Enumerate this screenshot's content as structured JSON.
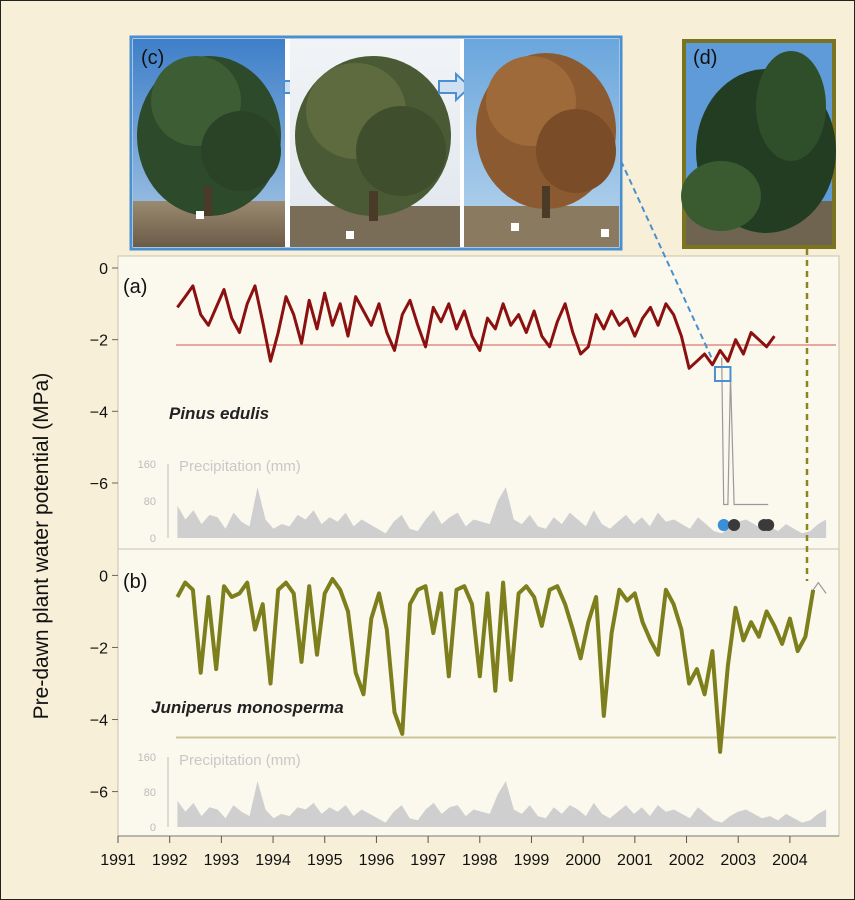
{
  "chart_data": {
    "type": "line",
    "ylabel": "Pre-dawn plant water potential (MPa)",
    "xlabel": "",
    "x_ticks": [
      "1991",
      "1992",
      "1993",
      "1994",
      "1995",
      "1996",
      "1997",
      "1998",
      "1999",
      "2000",
      "2001",
      "2002",
      "2003",
      "2004"
    ],
    "xlim": [
      1991.0,
      2004.95
    ],
    "photos": [
      {
        "label": "(c)",
        "panels": 3
      },
      {
        "label": "(d)",
        "panels": 1
      }
    ],
    "panels": [
      {
        "label": "(a)",
        "species": "Pinus edulis",
        "ylim": [
          -7.2,
          0
        ],
        "y_ticks": [
          "0",
          "−2",
          "−4",
          "−6"
        ],
        "y_tick_values": [
          0,
          -2,
          -4,
          -6
        ],
        "threshold": -2.15,
        "threshold_color": "#e8a79c",
        "line_color": "#8b1010",
        "precip_label": "Precipitation (mm)",
        "precip_ticks": [
          "160",
          "80",
          "0"
        ],
        "precip_tick_values": [
          160,
          80,
          0
        ],
        "death_markers": [
          {
            "year": 2002.72,
            "color": "#3a8fd8"
          },
          {
            "year": 2002.92,
            "color": "#3a3a3a"
          },
          {
            "year": 2003.5,
            "color": "#3a3a3a"
          },
          {
            "year": 2003.58,
            "color": "#3a3a3a"
          }
        ],
        "series": [
          {
            "x": [
              1992.15,
              1992.3,
              1992.45,
              1992.6,
              1992.75,
              1992.9,
              1993.05,
              1993.2,
              1993.35,
              1993.5,
              1993.65,
              1993.8,
              1993.95,
              1994.1,
              1994.25,
              1994.4,
              1994.55,
              1994.7,
              1994.85,
              1995.0,
              1995.15,
              1995.3,
              1995.45,
              1995.6,
              1995.75,
              1995.9,
              1996.05,
              1996.2,
              1996.35,
              1996.5,
              1996.65,
              1996.8,
              1996.95,
              1997.1,
              1997.25,
              1997.4,
              1997.55,
              1997.7,
              1997.85,
              1998.0,
              1998.15,
              1998.3,
              1998.45,
              1998.6,
              1998.75,
              1998.9,
              1999.05,
              1999.2,
              1999.35,
              1999.5,
              1999.65,
              1999.8,
              1999.95,
              2000.1,
              2000.25,
              2000.4,
              2000.55,
              2000.7,
              2000.85,
              2001.0,
              2001.15,
              2001.3,
              2001.45,
              2001.6,
              2001.75,
              2001.9,
              2002.05,
              2002.2,
              2002.35,
              2002.5,
              2002.65,
              2002.8,
              2002.95,
              2003.1,
              2003.25,
              2003.4,
              2003.55,
              2003.7
            ],
            "y": [
              -1.1,
              -0.8,
              -0.5,
              -1.3,
              -1.6,
              -1.1,
              -0.6,
              -1.4,
              -1.8,
              -1.0,
              -0.5,
              -1.5,
              -2.6,
              -1.8,
              -0.8,
              -1.3,
              -2.1,
              -0.9,
              -1.7,
              -0.7,
              -1.6,
              -1.0,
              -1.9,
              -0.8,
              -1.2,
              -1.6,
              -1.0,
              -1.8,
              -2.3,
              -1.3,
              -0.9,
              -1.6,
              -2.2,
              -1.1,
              -1.5,
              -1.0,
              -1.7,
              -1.2,
              -1.9,
              -2.3,
              -1.4,
              -1.7,
              -1.0,
              -1.6,
              -1.3,
              -1.8,
              -1.2,
              -1.9,
              -2.2,
              -1.5,
              -1.0,
              -1.8,
              -2.4,
              -2.2,
              -1.3,
              -1.7,
              -1.2,
              -1.6,
              -1.4,
              -1.9,
              -1.4,
              -1.1,
              -1.6,
              -1.0,
              -1.3,
              -1.9,
              -2.8,
              -2.6,
              -2.4,
              -2.7,
              -2.3,
              -2.6,
              -2.0,
              -2.4,
              -1.8,
              -2.0,
              -2.2,
              -1.9
            ]
          },
          {
            "x": [
              2002.68,
              2002.72,
              2002.8,
              2002.85,
              2002.92,
              2003.0,
              2003.1,
              2003.25,
              2003.4,
              2003.48,
              2003.52,
              2003.58
            ],
            "y": [
              -2.5,
              -6.6,
              -6.6,
              -3.0,
              -6.6,
              -6.6,
              -6.6,
              -6.6,
              -6.6,
              -6.6,
              -6.6,
              -6.6
            ]
          }
        ],
        "precip_values": [
          70,
          40,
          60,
          30,
          50,
          45,
          20,
          55,
          35,
          25,
          110,
          40,
          20,
          30,
          25,
          50,
          40,
          60,
          30,
          45,
          35,
          55,
          25,
          40,
          30,
          20,
          10,
          35,
          50,
          20,
          15,
          40,
          60,
          30,
          45,
          55,
          25,
          40,
          35,
          30,
          80,
          110,
          40,
          30,
          50,
          25,
          20,
          45,
          30,
          55,
          40,
          25,
          60,
          30,
          20,
          35,
          50,
          30,
          45,
          25,
          55,
          35,
          40,
          30,
          20,
          45,
          30,
          15,
          10,
          25,
          35,
          40,
          30,
          20,
          25,
          15,
          30,
          20,
          10,
          15,
          30,
          40
        ]
      },
      {
        "label": "(b)",
        "species": "Juniperus monosperma",
        "ylim": [
          -6.9,
          0.4
        ],
        "y_ticks": [
          "0",
          "−2",
          "−4",
          "−6"
        ],
        "y_tick_values": [
          0,
          -2,
          -4,
          -6
        ],
        "threshold": -4.5,
        "threshold_color": "#cbc49a",
        "line_color": "#7d7e1c",
        "precip_label": "Precipitation (mm)",
        "precip_ticks": [
          "160",
          "80",
          "0"
        ],
        "precip_tick_values": [
          160,
          80,
          0
        ],
        "series": [
          {
            "x": [
              1992.15,
              1992.3,
              1992.45,
              1992.6,
              1992.75,
              1992.9,
              1993.05,
              1993.2,
              1993.35,
              1993.5,
              1993.65,
              1993.8,
              1993.95,
              1994.1,
              1994.25,
              1994.4,
              1994.55,
              1994.7,
              1994.85,
              1995.0,
              1995.15,
              1995.3,
              1995.45,
              1995.6,
              1995.75,
              1995.9,
              1996.05,
              1996.2,
              1996.35,
              1996.5,
              1996.65,
              1996.8,
              1996.95,
              1997.1,
              1997.25,
              1997.4,
              1997.55,
              1997.7,
              1997.85,
              1998.0,
              1998.15,
              1998.3,
              1998.45,
              1998.6,
              1998.75,
              1998.9,
              1999.05,
              1999.2,
              1999.35,
              1999.5,
              1999.65,
              1999.8,
              1999.95,
              2000.1,
              2000.25,
              2000.4,
              2000.55,
              2000.7,
              2000.85,
              2001.0,
              2001.15,
              2001.3,
              2001.45,
              2001.6,
              2001.75,
              2001.9,
              2002.05,
              2002.2,
              2002.35,
              2002.5,
              2002.65,
              2002.8,
              2002.95,
              2003.1,
              2003.25,
              2003.4,
              2003.55,
              2003.7,
              2003.85,
              2004.0,
              2004.15,
              2004.3,
              2004.45
            ],
            "y": [
              -0.6,
              -0.2,
              -0.4,
              -2.7,
              -0.6,
              -2.6,
              -0.3,
              -0.6,
              -0.5,
              -0.2,
              -1.5,
              -0.8,
              -3.0,
              -0.4,
              -0.2,
              -0.5,
              -2.4,
              -0.3,
              -2.2,
              -0.5,
              -0.1,
              -0.4,
              -1.0,
              -2.7,
              -3.3,
              -1.2,
              -0.5,
              -1.5,
              -3.8,
              -4.4,
              -0.8,
              -0.4,
              -0.3,
              -1.6,
              -0.5,
              -2.8,
              -0.4,
              -0.3,
              -0.8,
              -2.8,
              -0.5,
              -3.2,
              -0.2,
              -2.9,
              -0.5,
              -0.3,
              -0.6,
              -1.4,
              -0.4,
              -0.3,
              -0.8,
              -1.5,
              -2.3,
              -1.3,
              -0.6,
              -3.9,
              -1.6,
              -0.4,
              -0.7,
              -0.5,
              -1.3,
              -1.8,
              -2.2,
              -0.4,
              -0.8,
              -1.5,
              -3.0,
              -2.6,
              -3.3,
              -2.1,
              -4.9,
              -2.5,
              -0.9,
              -1.8,
              -1.3,
              -1.7,
              -1.0,
              -1.4,
              -1.9,
              -1.2,
              -2.1,
              -1.7,
              -0.4
            ]
          },
          {
            "x": [
              2004.45,
              2004.55,
              2004.7
            ],
            "y": [
              -0.4,
              -0.2,
              -0.5
            ]
          }
        ],
        "precip_values": [
          60,
          35,
          55,
          25,
          45,
          40,
          20,
          50,
          35,
          25,
          105,
          40,
          20,
          30,
          25,
          45,
          40,
          55,
          30,
          45,
          35,
          50,
          25,
          40,
          30,
          20,
          10,
          35,
          50,
          20,
          15,
          40,
          55,
          30,
          45,
          50,
          25,
          40,
          35,
          30,
          75,
          105,
          40,
          30,
          50,
          25,
          20,
          45,
          30,
          50,
          40,
          25,
          55,
          30,
          20,
          35,
          50,
          30,
          45,
          25,
          50,
          35,
          40,
          30,
          20,
          45,
          30,
          15,
          10,
          25,
          35,
          40,
          30,
          20,
          25,
          15,
          30,
          20,
          10,
          15,
          30,
          40
        ]
      }
    ]
  }
}
